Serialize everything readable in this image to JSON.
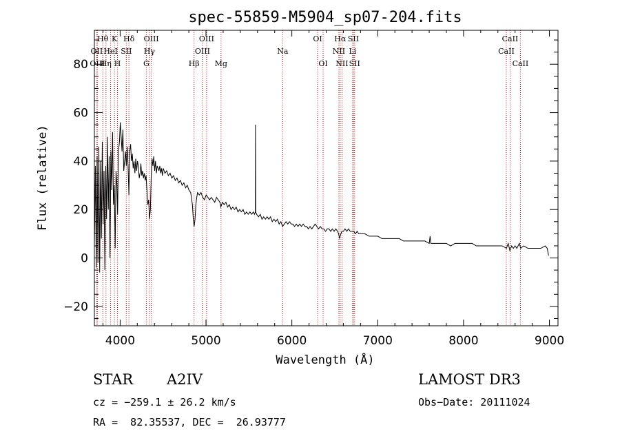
{
  "chart_data": {
    "type": "line",
    "title": "spec-55859-M5904_sp07-204.fits",
    "xlabel": "Wavelength (Å)",
    "ylabel": "Flux (relative)",
    "xlim": [
      3700,
      9100
    ],
    "ylim": [
      -28,
      94
    ],
    "xticks": [
      4000,
      5000,
      6000,
      7000,
      8000,
      9000
    ],
    "yticks": [
      -20,
      0,
      20,
      40,
      60,
      80
    ],
    "line_color": "#000000",
    "marker_color": "#cc0000",
    "series": [
      {
        "name": "flux",
        "points": [
          [
            3700,
            5
          ],
          [
            3712,
            38
          ],
          [
            3722,
            -4
          ],
          [
            3732,
            42
          ],
          [
            3742,
            -2
          ],
          [
            3752,
            46
          ],
          [
            3762,
            -6
          ],
          [
            3772,
            40
          ],
          [
            3782,
            8
          ],
          [
            3792,
            48
          ],
          [
            3802,
            14
          ],
          [
            3812,
            36
          ],
          [
            3822,
            -5
          ],
          [
            3832,
            38
          ],
          [
            3842,
            16
          ],
          [
            3852,
            50
          ],
          [
            3862,
            20
          ],
          [
            3872,
            42
          ],
          [
            3882,
            0
          ],
          [
            3892,
            44
          ],
          [
            3902,
            28
          ],
          [
            3912,
            52
          ],
          [
            3922,
            22
          ],
          [
            3932,
            30
          ],
          [
            3942,
            4
          ],
          [
            3952,
            36
          ],
          [
            3962,
            30
          ],
          [
            3970,
            18
          ],
          [
            3980,
            44
          ],
          [
            3992,
            48
          ],
          [
            4002,
            56
          ],
          [
            4012,
            50
          ],
          [
            4022,
            44
          ],
          [
            4032,
            53
          ],
          [
            4042,
            36
          ],
          [
            4052,
            40
          ],
          [
            4062,
            44
          ],
          [
            4072,
            38
          ],
          [
            4082,
            46
          ],
          [
            4092,
            38
          ],
          [
            4102,
            26
          ],
          [
            4112,
            44
          ],
          [
            4122,
            47
          ],
          [
            4132,
            40
          ],
          [
            4142,
            43
          ],
          [
            4152,
            37
          ],
          [
            4162,
            40
          ],
          [
            4172,
            35
          ],
          [
            4182,
            41
          ],
          [
            4192,
            36
          ],
          [
            4202,
            40
          ],
          [
            4212,
            38
          ],
          [
            4222,
            33
          ],
          [
            4232,
            35
          ],
          [
            4242,
            39
          ],
          [
            4252,
            34
          ],
          [
            4262,
            36
          ],
          [
            4272,
            33
          ],
          [
            4282,
            35
          ],
          [
            4292,
            32
          ],
          [
            4302,
            34
          ],
          [
            4312,
            28
          ],
          [
            4322,
            22
          ],
          [
            4332,
            24
          ],
          [
            4342,
            16
          ],
          [
            4352,
            20
          ],
          [
            4362,
            34
          ],
          [
            4372,
            41
          ],
          [
            4382,
            38
          ],
          [
            4392,
            42
          ],
          [
            4402,
            36
          ],
          [
            4412,
            40
          ],
          [
            4422,
            35
          ],
          [
            4432,
            38
          ],
          [
            4442,
            37
          ],
          [
            4452,
            36
          ],
          [
            4462,
            38
          ],
          [
            4472,
            35
          ],
          [
            4482,
            37
          ],
          [
            4492,
            34
          ],
          [
            4502,
            37
          ],
          [
            4522,
            35
          ],
          [
            4542,
            36
          ],
          [
            4562,
            34
          ],
          [
            4582,
            35
          ],
          [
            4602,
            33
          ],
          [
            4622,
            34
          ],
          [
            4642,
            32
          ],
          [
            4662,
            33
          ],
          [
            4682,
            31
          ],
          [
            4702,
            32
          ],
          [
            4722,
            30
          ],
          [
            4742,
            31
          ],
          [
            4762,
            29
          ],
          [
            4782,
            30
          ],
          [
            4802,
            28
          ],
          [
            4822,
            27
          ],
          [
            4842,
            22
          ],
          [
            4852,
            16
          ],
          [
            4862,
            13
          ],
          [
            4872,
            16
          ],
          [
            4882,
            22
          ],
          [
            4892,
            25
          ],
          [
            4902,
            27
          ],
          [
            4922,
            26
          ],
          [
            4942,
            27
          ],
          [
            4962,
            25
          ],
          [
            4982,
            24
          ],
          [
            5002,
            26
          ],
          [
            5022,
            25
          ],
          [
            5042,
            24
          ],
          [
            5062,
            25
          ],
          [
            5082,
            24
          ],
          [
            5102,
            23
          ],
          [
            5122,
            25
          ],
          [
            5142,
            24
          ],
          [
            5162,
            23
          ],
          [
            5172,
            21
          ],
          [
            5182,
            22
          ],
          [
            5192,
            23
          ],
          [
            5212,
            22
          ],
          [
            5232,
            23
          ],
          [
            5252,
            21
          ],
          [
            5272,
            22
          ],
          [
            5292,
            20
          ],
          [
            5312,
            21
          ],
          [
            5332,
            20
          ],
          [
            5352,
            21
          ],
          [
            5372,
            19
          ],
          [
            5392,
            20
          ],
          [
            5412,
            19
          ],
          [
            5432,
            20
          ],
          [
            5452,
            18
          ],
          [
            5472,
            19
          ],
          [
            5492,
            18
          ],
          [
            5512,
            19
          ],
          [
            5532,
            18
          ],
          [
            5552,
            19
          ],
          [
            5565,
            18
          ],
          [
            5575,
            19
          ],
          [
            5577,
            55
          ],
          [
            5579,
            19
          ],
          [
            5590,
            18
          ],
          [
            5612,
            17
          ],
          [
            5632,
            18
          ],
          [
            5652,
            16
          ],
          [
            5672,
            17
          ],
          [
            5692,
            16
          ],
          [
            5712,
            17
          ],
          [
            5732,
            16
          ],
          [
            5752,
            17
          ],
          [
            5772,
            15
          ],
          [
            5792,
            16
          ],
          [
            5812,
            15
          ],
          [
            5832,
            16
          ],
          [
            5852,
            14
          ],
          [
            5872,
            15
          ],
          [
            5892,
            13
          ],
          [
            5912,
            14
          ],
          [
            5932,
            15
          ],
          [
            5952,
            14
          ],
          [
            5972,
            15
          ],
          [
            5992,
            14
          ],
          [
            6012,
            14
          ],
          [
            6032,
            13
          ],
          [
            6052,
            14
          ],
          [
            6072,
            13
          ],
          [
            6092,
            14
          ],
          [
            6112,
            13
          ],
          [
            6132,
            14
          ],
          [
            6152,
            13
          ],
          [
            6172,
            13
          ],
          [
            6192,
            12
          ],
          [
            6212,
            13
          ],
          [
            6232,
            12
          ],
          [
            6252,
            13
          ],
          [
            6272,
            14
          ],
          [
            6292,
            13
          ],
          [
            6312,
            12
          ],
          [
            6332,
            13
          ],
          [
            6352,
            12
          ],
          [
            6372,
            12
          ],
          [
            6392,
            11
          ],
          [
            6412,
            12
          ],
          [
            6432,
            12
          ],
          [
            6452,
            11
          ],
          [
            6472,
            12
          ],
          [
            6492,
            11
          ],
          [
            6512,
            12
          ],
          [
            6532,
            11
          ],
          [
            6545,
            10
          ],
          [
            6555,
            8
          ],
          [
            6563,
            9
          ],
          [
            6572,
            10
          ],
          [
            6582,
            11
          ],
          [
            6600,
            11
          ],
          [
            6620,
            12
          ],
          [
            6640,
            11
          ],
          [
            6660,
            12
          ],
          [
            6680,
            11
          ],
          [
            6700,
            11
          ],
          [
            6720,
            11
          ],
          [
            6740,
            10
          ],
          [
            6760,
            11
          ],
          [
            6780,
            10
          ],
          [
            6800,
            10
          ],
          [
            6850,
            10
          ],
          [
            6900,
            9
          ],
          [
            6950,
            9
          ],
          [
            7000,
            9
          ],
          [
            7050,
            8
          ],
          [
            7100,
            8
          ],
          [
            7150,
            8
          ],
          [
            7200,
            8
          ],
          [
            7250,
            8
          ],
          [
            7300,
            7
          ],
          [
            7350,
            7
          ],
          [
            7400,
            7
          ],
          [
            7450,
            7
          ],
          [
            7500,
            7
          ],
          [
            7550,
            7
          ],
          [
            7600,
            6
          ],
          [
            7610,
            9
          ],
          [
            7620,
            6
          ],
          [
            7650,
            6
          ],
          [
            7700,
            6
          ],
          [
            7750,
            6
          ],
          [
            7800,
            6
          ],
          [
            7850,
            5
          ],
          [
            7900,
            6
          ],
          [
            7950,
            6
          ],
          [
            8000,
            6
          ],
          [
            8050,
            6
          ],
          [
            8100,
            6
          ],
          [
            8150,
            5
          ],
          [
            8200,
            5
          ],
          [
            8250,
            5
          ],
          [
            8300,
            5
          ],
          [
            8350,
            5
          ],
          [
            8400,
            5
          ],
          [
            8450,
            5
          ],
          [
            8500,
            4
          ],
          [
            8520,
            6
          ],
          [
            8540,
            3
          ],
          [
            8560,
            5
          ],
          [
            8580,
            4
          ],
          [
            8600,
            5
          ],
          [
            8620,
            4
          ],
          [
            8650,
            6
          ],
          [
            8665,
            4
          ],
          [
            8700,
            5
          ],
          [
            8750,
            4
          ],
          [
            8800,
            4
          ],
          [
            8850,
            4
          ],
          [
            8900,
            4
          ],
          [
            8950,
            5
          ],
          [
            8975,
            4
          ],
          [
            8990,
            1
          ]
        ]
      }
    ],
    "line_markers": [
      {
        "label": "Hθ",
        "x": 3798,
        "row": 0
      },
      {
        "label": "OII",
        "x": 3727,
        "row": 1
      },
      {
        "label": "OIII",
        "x": 3735,
        "row": 2
      },
      {
        "label": "K",
        "x": 3934,
        "row": 0
      },
      {
        "label": "HeI",
        "x": 3889,
        "row": 1
      },
      {
        "label": "Hη",
        "x": 3835,
        "row": 2
      },
      {
        "label": "Hδ",
        "x": 4102,
        "row": 0
      },
      {
        "label": "SII",
        "x": 4072,
        "row": 1
      },
      {
        "label": "H",
        "x": 3969,
        "row": 2
      },
      {
        "label": "OIII",
        "x": 4363,
        "row": 0
      },
      {
        "label": "Hγ",
        "x": 4341,
        "row": 1
      },
      {
        "label": "G",
        "x": 4305,
        "row": 2
      },
      {
        "label": "OIII",
        "x": 5007,
        "row": 0
      },
      {
        "label": "OIII",
        "x": 4959,
        "row": 1
      },
      {
        "label": "Hβ",
        "x": 4861,
        "row": 2
      },
      {
        "label": "Mg",
        "x": 5175,
        "row": 2
      },
      {
        "label": "Na",
        "x": 5893,
        "row": 1
      },
      {
        "label": "OI",
        "x": 6300,
        "row": 0
      },
      {
        "label": "OI",
        "x": 6364,
        "row": 2
      },
      {
        "label": "Hα",
        "x": 6563,
        "row": 0
      },
      {
        "label": "SII",
        "x": 6717,
        "row": 0
      },
      {
        "label": "NII",
        "x": 6548,
        "row": 1
      },
      {
        "label": "Li",
        "x": 6708,
        "row": 1
      },
      {
        "label": "NII",
        "x": 6584,
        "row": 2
      },
      {
        "label": "SII",
        "x": 6731,
        "row": 2
      },
      {
        "label": "CaII",
        "x": 8542,
        "row": 0
      },
      {
        "label": "CaII",
        "x": 8498,
        "row": 1
      },
      {
        "label": "CaII",
        "x": 8662,
        "row": 2
      }
    ]
  },
  "info": {
    "object_class": "STAR",
    "subclass": "A2IV",
    "survey": "LAMOST DR3",
    "redshift": "cz = −259.1 ± 26.2 km/s",
    "obs_date": "Obs−Date: 20111024",
    "coords": "RA =  82.35537, DEC =  26.93777"
  }
}
